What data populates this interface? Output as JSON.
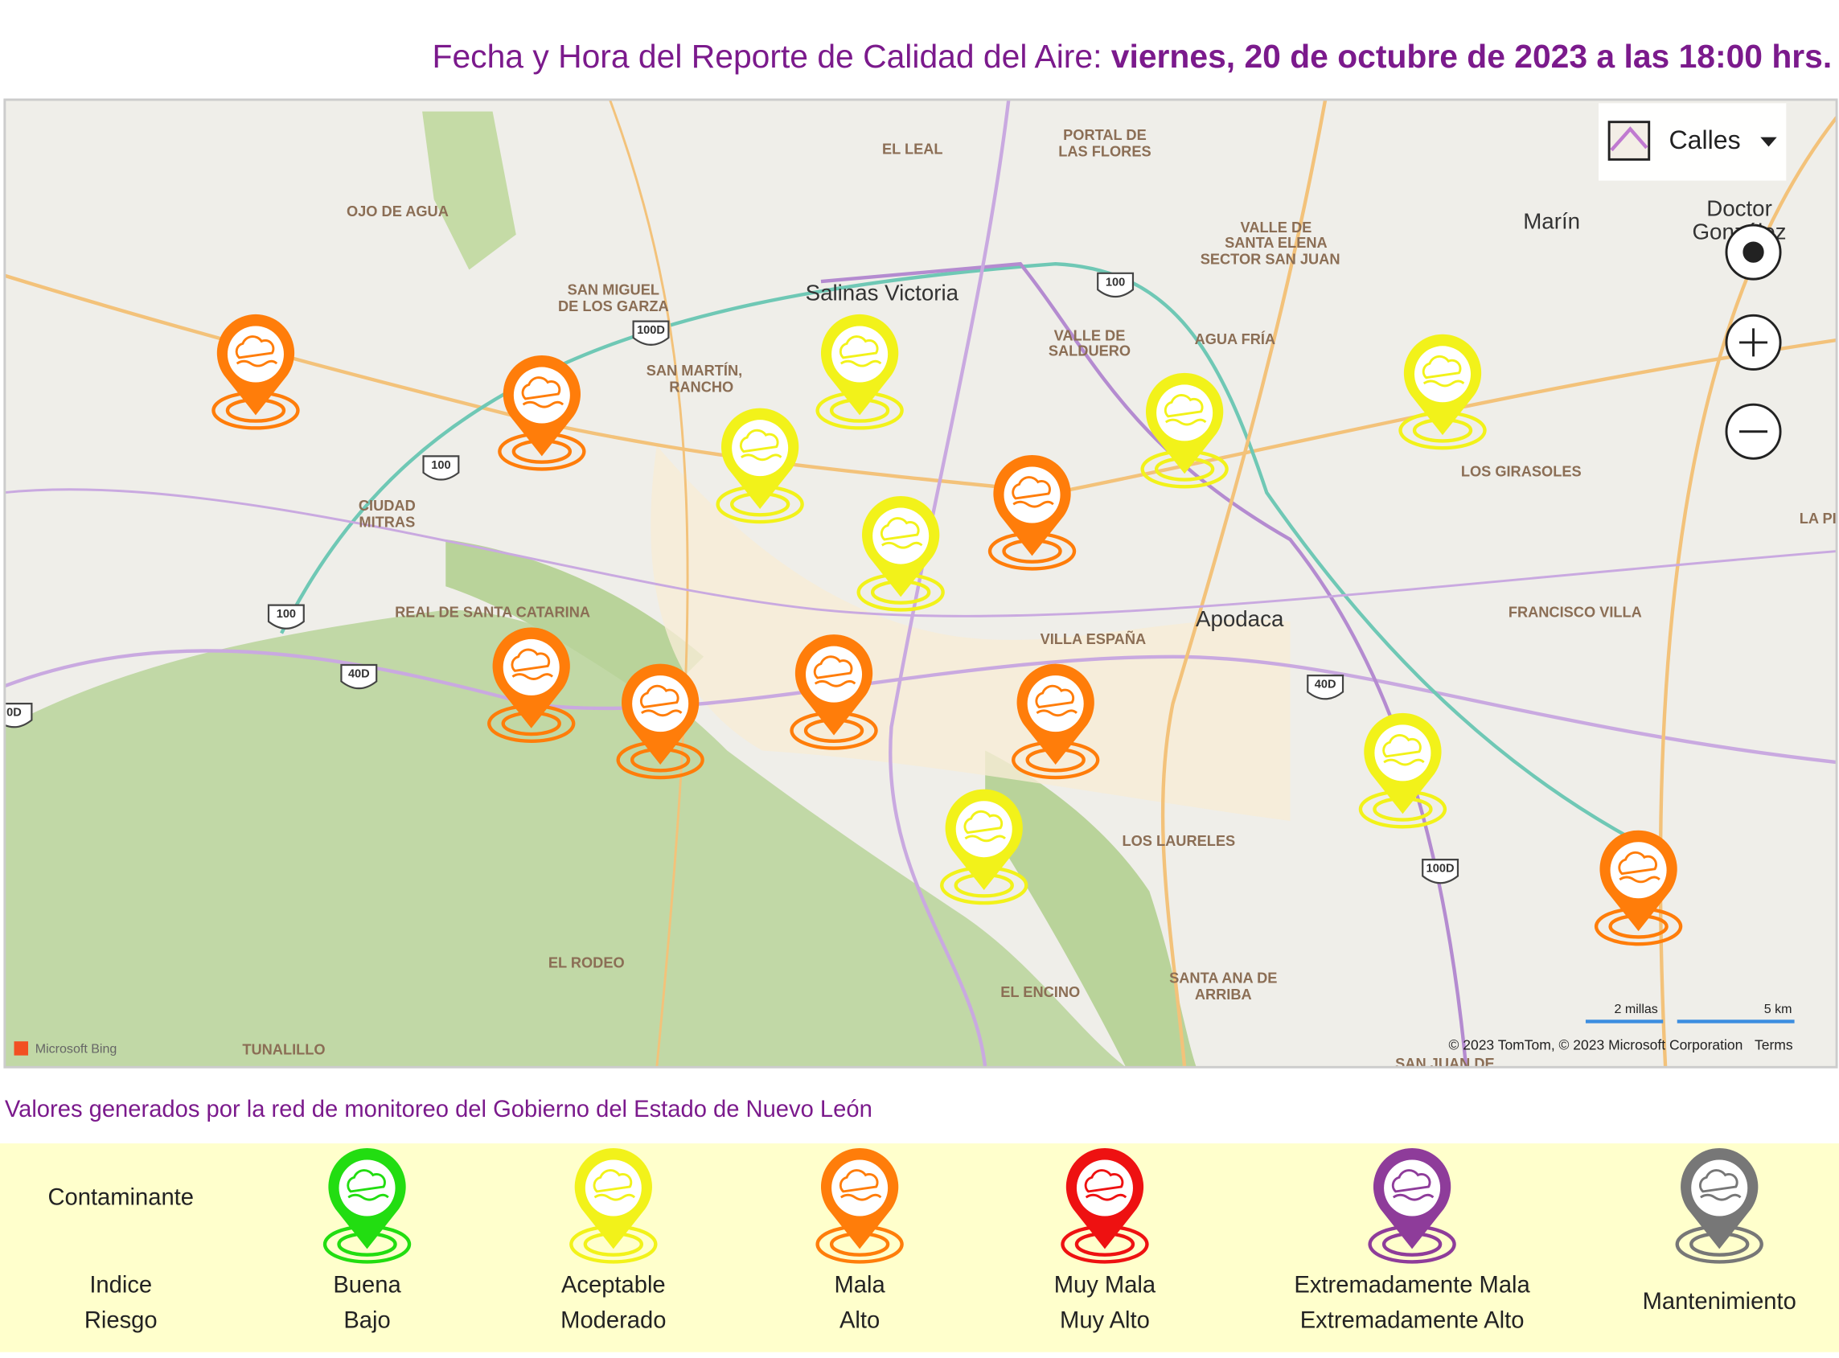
{
  "header": {
    "label": "Fecha y Hora del Reporte de Calidad del Aire:",
    "datetime": "viernes, 20 de octubre de 2023 a las 18:00 hrs."
  },
  "map": {
    "layer": "Calles",
    "places": [
      "EL LEAL",
      "PORTAL DE",
      "LAS FLORES",
      "OJO DE AGUA",
      "VALLE DE",
      "SANTA ELENA",
      "SECTOR SAN JUAN",
      "Marín",
      "Doctor",
      "González",
      "SAN MIGUEL",
      "DE LOS GARZA",
      "Salinas Victoria",
      "VALLE DE",
      "SALDUERO",
      "AGUA FRÍA",
      "SAN MARTÍN,",
      "RANCHO",
      "LOS GIRASOLES",
      "CIUDAD",
      "MITRAS",
      "LA PI",
      "REAL DE SANTA CATARINA",
      "FRANCISCO VILLA",
      "Apodaca",
      "VILLA ESPAÑA",
      "LOS LAURELES",
      "EL RODEO",
      "SANTA ANA DE",
      "ARRIBA",
      "EL ENCINO",
      "TUNALILLO",
      "SAN JUAN DE"
    ],
    "shields": [
      "100D",
      "100",
      "100",
      "100",
      "40D",
      "40D",
      "100D",
      "0D"
    ],
    "logo": "Microsoft Bing",
    "scale": [
      "2 millas",
      "5 km"
    ],
    "attribution": "© 2023 TomTom, © 2023 Microsoft Corporation",
    "terms": "Terms"
  },
  "note": "Valores generados por la red de monitoreo del Gobierno del Estado de Nuevo León",
  "legend": {
    "title": "Contaminante",
    "header": [
      "Indice",
      "Riesgo"
    ],
    "items": [
      {
        "label": [
          "Buena",
          "Bajo"
        ],
        "color": "#22dd11"
      },
      {
        "label": [
          "Aceptable",
          "Moderado"
        ],
        "color": "#f2f21a"
      },
      {
        "label": [
          "Mala",
          "Alto"
        ],
        "color": "#ff7d0a"
      },
      {
        "label": [
          "Muy Mala",
          "Muy Alto"
        ],
        "color": "#ee1111"
      },
      {
        "label": [
          "Extremadamente Mala",
          "Extremadamente Alto"
        ],
        "color": "#8e3c9a"
      },
      {
        "label": [
          "Mantenimiento"
        ],
        "color": "#777777"
      }
    ]
  }
}
